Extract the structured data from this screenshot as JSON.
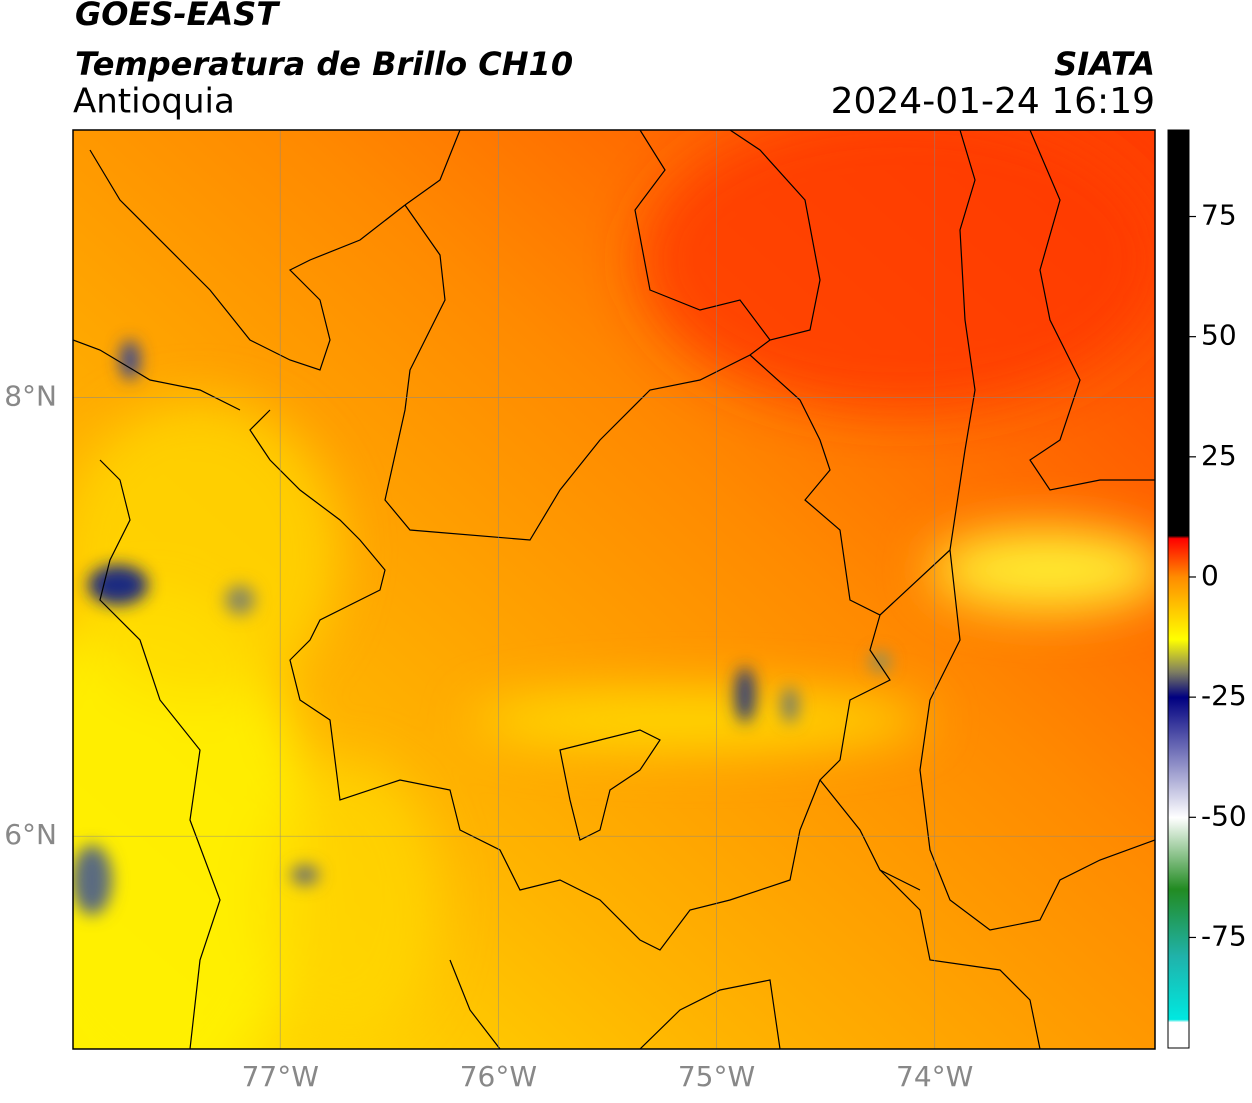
{
  "header": {
    "title": "GOES-EAST",
    "subtitle": "Temperatura de Brillo CH10",
    "region": "Antioquia",
    "source": "SIATA",
    "timestamp": "2024-01-24 16:19"
  },
  "map": {
    "xlim": [
      -77.95,
      -72.99
    ],
    "ylim": [
      5.03,
      9.22
    ],
    "xticks": [
      {
        "value": -77,
        "label": "77°W"
      },
      {
        "value": -76,
        "label": "76°W"
      },
      {
        "value": -75,
        "label": "75°W"
      },
      {
        "value": -74,
        "label": "74°W"
      }
    ],
    "yticks": [
      {
        "value": 6,
        "label": "6°N"
      },
      {
        "value": 8,
        "label": "8°N"
      }
    ],
    "grid": true
  },
  "colorbar": {
    "lim": [
      -98,
      93
    ],
    "ticks": [
      -75,
      -50,
      -25,
      0,
      25,
      50,
      75
    ]
  }
}
